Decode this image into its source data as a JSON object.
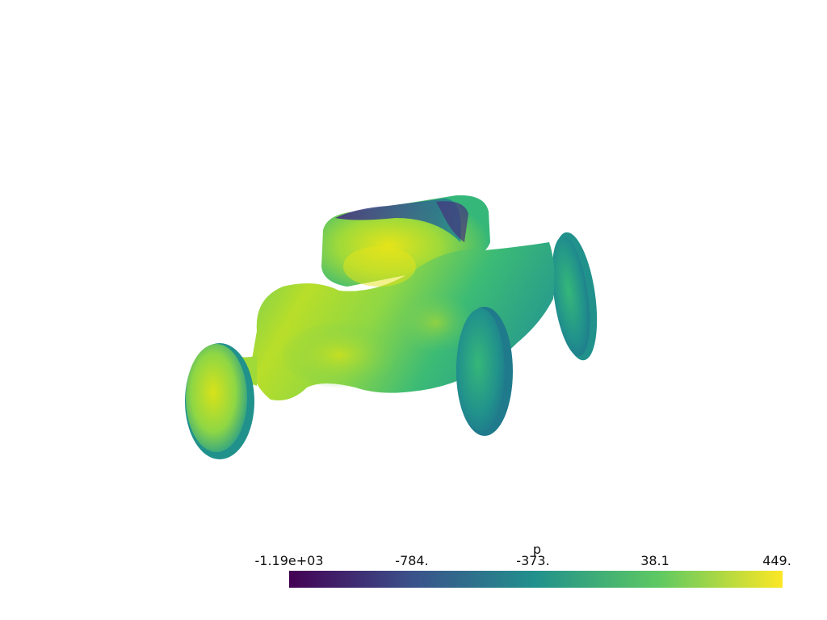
{
  "scalar_bar": {
    "title": "p",
    "ticks": [
      "-1.19e+03",
      "-784.",
      "-373.",
      "38.1",
      "449."
    ],
    "range": [
      -1190,
      449
    ],
    "colormap": "viridis",
    "colors": [
      "#440154",
      "#3b528b",
      "#21918c",
      "#5ec962",
      "#fde725"
    ]
  },
  "scene": {
    "object": "car-shaped-surface",
    "background": "#ffffff"
  }
}
